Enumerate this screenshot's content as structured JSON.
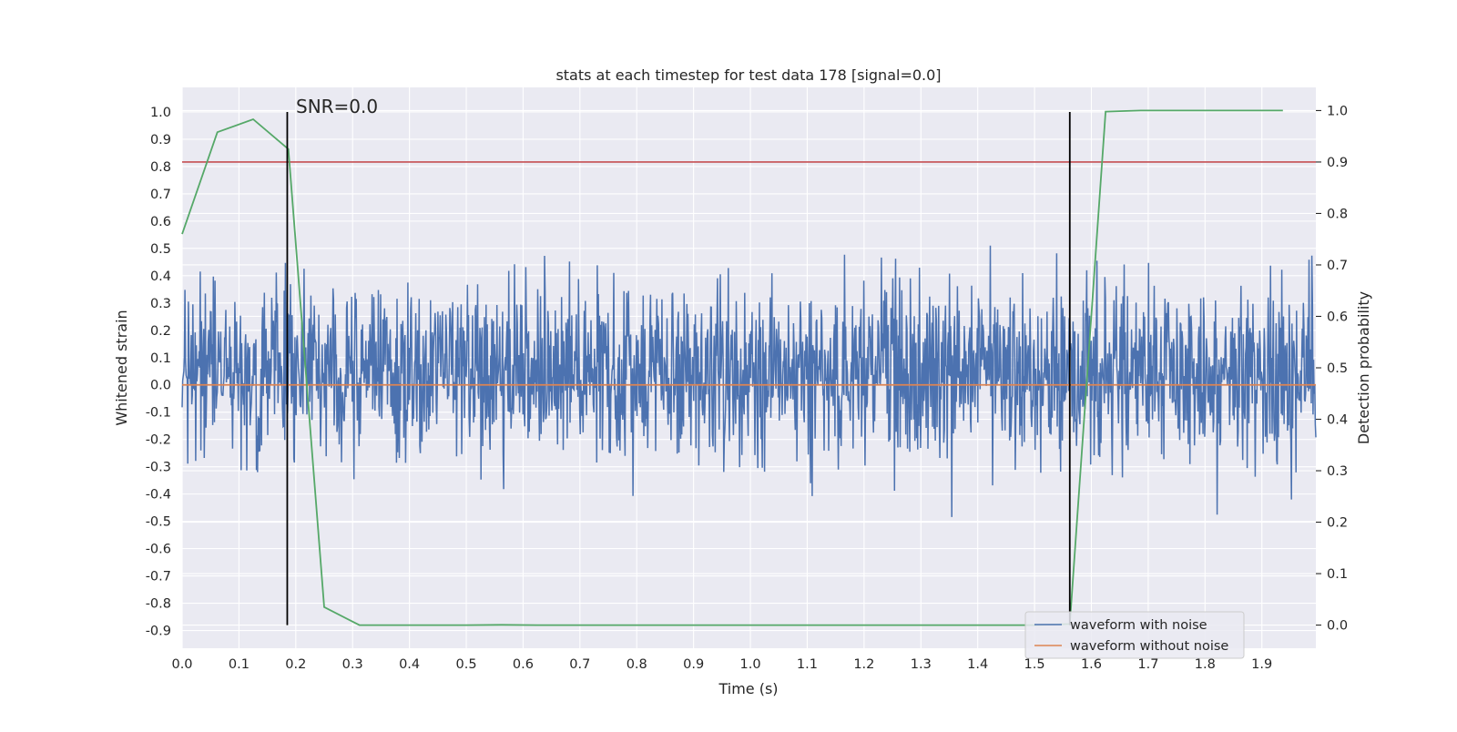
{
  "chart_data": {
    "type": "line",
    "title": "stats at each timestep for test data 178 [signal=0.0]",
    "xlabel": "Time (s)",
    "ylabel_left": "Whitened strain",
    "ylabel_right": "Detection probability",
    "xlim": [
      0.0,
      1.995
    ],
    "ylim_left": [
      -0.965,
      1.09
    ],
    "ylim_right": [
      -0.045,
      1.045
    ],
    "x_ticks": [
      "0.0",
      "0.1",
      "0.2",
      "0.3",
      "0.4",
      "0.5",
      "0.6",
      "0.7",
      "0.8",
      "0.9",
      "1.0",
      "1.1",
      "1.2",
      "1.3",
      "1.4",
      "1.5",
      "1.6",
      "1.7",
      "1.8",
      "1.9"
    ],
    "y_ticks_left": [
      "1.0",
      "0.9",
      "0.8",
      "0.7",
      "0.6",
      "0.5",
      "0.4",
      "0.3",
      "0.2",
      "0.1",
      "0.0",
      "-0.1",
      "-0.2",
      "-0.3",
      "-0.4",
      "-0.5",
      "-0.6",
      "-0.7",
      "-0.8",
      "-0.9"
    ],
    "y_ticks_right": [
      "1.0",
      "0.9",
      "0.8",
      "0.7",
      "0.6",
      "0.5",
      "0.4",
      "0.3",
      "0.2",
      "0.1",
      "0.0"
    ],
    "grid": true,
    "annotation": "SNR=0.0",
    "vertical_markers_x": [
      0.185,
      1.562
    ],
    "threshold_right": 0.9,
    "noise_envelope": {
      "amplitude": 0.85,
      "sample_count": 2000,
      "seed": 178
    },
    "series": [
      {
        "name": "waveform with noise",
        "axis": "left",
        "color": "#4c72b0",
        "kind": "noise"
      },
      {
        "name": "waveform without noise",
        "axis": "left",
        "color": "#dd8452",
        "x": [
          0.0,
          1.995
        ],
        "y": [
          0.0,
          0.0
        ]
      },
      {
        "name": "detection probability",
        "axis": "right",
        "color": "#55a868",
        "x": [
          0.0,
          0.062,
          0.125,
          0.187,
          0.25,
          0.312,
          0.375,
          0.437,
          0.5,
          0.562,
          0.625,
          0.687,
          0.75,
          0.812,
          0.875,
          0.937,
          1.0,
          1.062,
          1.125,
          1.187,
          1.25,
          1.312,
          1.375,
          1.437,
          1.5,
          1.562,
          1.625,
          1.687,
          1.75,
          1.812,
          1.875,
          1.937
        ],
        "y": [
          0.76,
          0.958,
          0.983,
          0.925,
          0.035,
          0.0,
          0.0,
          0.0,
          0.0,
          0.0005,
          0.0,
          0.0,
          0.0,
          0.0,
          0.0,
          0.0,
          0.0,
          0.0,
          0.0,
          0.0,
          0.0,
          0.0,
          0.0,
          0.0,
          0.0,
          0.002,
          0.998,
          1.0,
          1.0,
          1.0,
          1.0,
          1.0
        ]
      },
      {
        "name": "threshold",
        "axis": "right",
        "color": "#c44e52",
        "y_const": 0.9
      }
    ],
    "legend": {
      "placement": "lower-right",
      "entries": [
        "waveform with noise",
        "waveform without noise"
      ]
    },
    "colors": {
      "plot_bg": "#eaeaf2",
      "grid": "#ffffff",
      "marker": "#000000"
    }
  }
}
